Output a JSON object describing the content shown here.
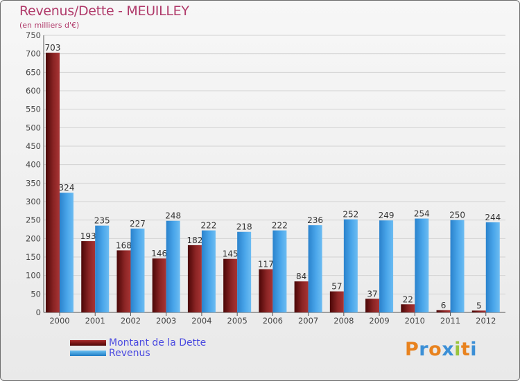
{
  "chart_data": {
    "type": "bar",
    "title": "Revenus/Dette - MEUILLEY",
    "subtitle": "(en milliers d'€)",
    "categories": [
      "2000",
      "2001",
      "2002",
      "2003",
      "2004",
      "2005",
      "2006",
      "2007",
      "2008",
      "2009",
      "2010",
      "2011",
      "2012"
    ],
    "series": [
      {
        "name": "Montant de la Dette",
        "color": "#7a1414",
        "values": [
          703,
          193,
          168,
          146,
          182,
          145,
          117,
          84,
          57,
          37,
          22,
          6,
          5
        ]
      },
      {
        "name": "Revenus",
        "color": "#3d9ce6",
        "values": [
          324,
          235,
          227,
          248,
          222,
          218,
          222,
          236,
          252,
          249,
          254,
          250,
          244
        ]
      }
    ],
    "ylim": [
      0,
      750
    ],
    "yticks": [
      0,
      50,
      100,
      150,
      200,
      250,
      300,
      350,
      400,
      450,
      500,
      550,
      600,
      650,
      700,
      750
    ],
    "grid": true,
    "legend": "bottom-left",
    "xlabel": "",
    "ylabel": ""
  },
  "logo": {
    "letters": [
      "P",
      "r",
      "o",
      "x",
      "i",
      "t",
      "i"
    ],
    "colors": [
      "#e8821e",
      "#3b8fd6",
      "#e8821e",
      "#3b8fd6",
      "#9ac43c",
      "#e8821e",
      "#3b8fd6"
    ]
  }
}
